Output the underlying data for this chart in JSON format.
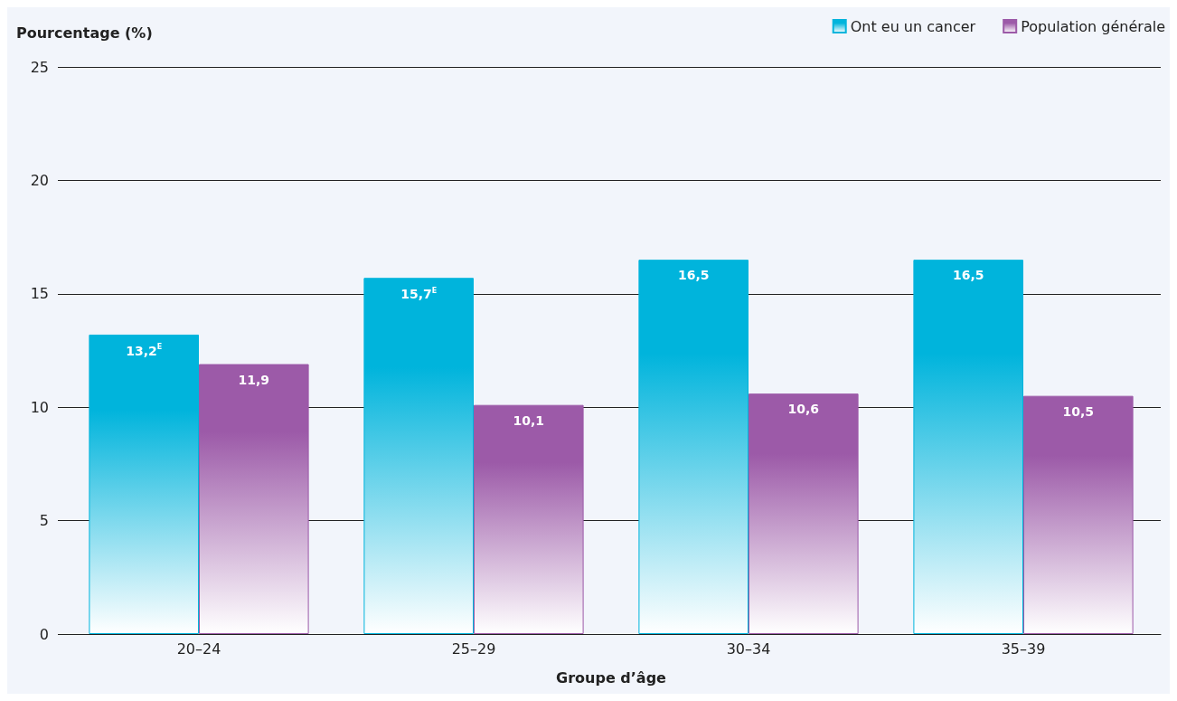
{
  "chart_data": {
    "type": "bar",
    "ylabel": "Pourcentage (%)",
    "xlabel": "Groupe d’âge",
    "categories": [
      "20–24",
      "25–29",
      "30–34",
      "35–39"
    ],
    "series": [
      {
        "name": "Ont eu un cancer",
        "color": "#00b4dc",
        "values": [
          13.2,
          15.7,
          16.5,
          16.5
        ],
        "value_labels": [
          "13,2$^{E}$",
          "15,7$^{E}$",
          "16,5",
          "16,5"
        ]
      },
      {
        "name": "Population générale",
        "color": "#9c5aa8",
        "values": [
          11.9,
          10.1,
          10.6,
          10.5
        ],
        "value_labels": [
          "11,9",
          "10,1",
          "10,6",
          "10,5"
        ]
      }
    ],
    "ylim": [
      0,
      25
    ],
    "yticks": [
      0,
      5,
      10,
      15,
      20,
      25
    ],
    "grid": "y",
    "legend": "top right"
  }
}
